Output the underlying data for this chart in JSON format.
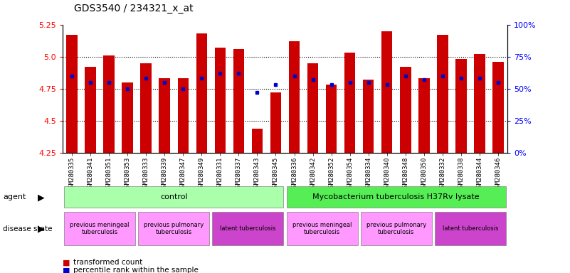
{
  "title": "GDS3540 / 234321_x_at",
  "samples": [
    "GSM280335",
    "GSM280341",
    "GSM280351",
    "GSM280353",
    "GSM280333",
    "GSM280339",
    "GSM280347",
    "GSM280349",
    "GSM280331",
    "GSM280337",
    "GSM280343",
    "GSM280345",
    "GSM280336",
    "GSM280342",
    "GSM280352",
    "GSM280354",
    "GSM280334",
    "GSM280340",
    "GSM280348",
    "GSM280350",
    "GSM280332",
    "GSM280338",
    "GSM280344",
    "GSM280346"
  ],
  "transformed_count": [
    5.17,
    4.92,
    5.01,
    4.8,
    4.95,
    4.83,
    4.83,
    5.18,
    5.07,
    5.06,
    4.44,
    4.72,
    5.12,
    4.95,
    4.78,
    5.03,
    4.82,
    5.2,
    4.92,
    4.83,
    5.17,
    4.98,
    5.02,
    4.96
  ],
  "percentile_rank": [
    60,
    55,
    55,
    50,
    58,
    55,
    50,
    58,
    62,
    62,
    47,
    53,
    60,
    57,
    53,
    55,
    55,
    53,
    60,
    57,
    60,
    58,
    58,
    55
  ],
  "ylim": [
    4.25,
    5.25
  ],
  "yticks": [
    4.25,
    4.5,
    4.75,
    5.0,
    5.25
  ],
  "right_yticks": [
    0,
    25,
    50,
    75,
    100
  ],
  "bar_color": "#cc0000",
  "blue_color": "#0000cc",
  "bar_width": 0.6,
  "agent_labels": [
    {
      "text": "control",
      "start": 0,
      "end": 11,
      "color": "#aaffaa"
    },
    {
      "text": "Mycobacterium tuberculosis H37Rv lysate",
      "start": 12,
      "end": 23,
      "color": "#55ee55"
    }
  ],
  "disease_labels": [
    {
      "text": "previous meningeal\ntuberculosis",
      "start": 0,
      "end": 3,
      "color": "#ff99ff"
    },
    {
      "text": "previous pulmonary\ntuberculosis",
      "start": 4,
      "end": 7,
      "color": "#ff99ff"
    },
    {
      "text": "latent tuberculosis",
      "start": 8,
      "end": 11,
      "color": "#cc44cc"
    },
    {
      "text": "previous meningeal\ntuberculosis",
      "start": 12,
      "end": 15,
      "color": "#ff99ff"
    },
    {
      "text": "previous pulmonary\ntuberculosis",
      "start": 16,
      "end": 19,
      "color": "#ff99ff"
    },
    {
      "text": "latent tuberculosis",
      "start": 20,
      "end": 23,
      "color": "#cc44cc"
    }
  ],
  "legend_items": [
    {
      "label": "transformed count",
      "color": "#cc0000"
    },
    {
      "label": "percentile rank within the sample",
      "color": "#0000cc"
    }
  ],
  "bg_color": "#ffffff",
  "tick_label_fontsize": 6.5,
  "title_fontsize": 10
}
